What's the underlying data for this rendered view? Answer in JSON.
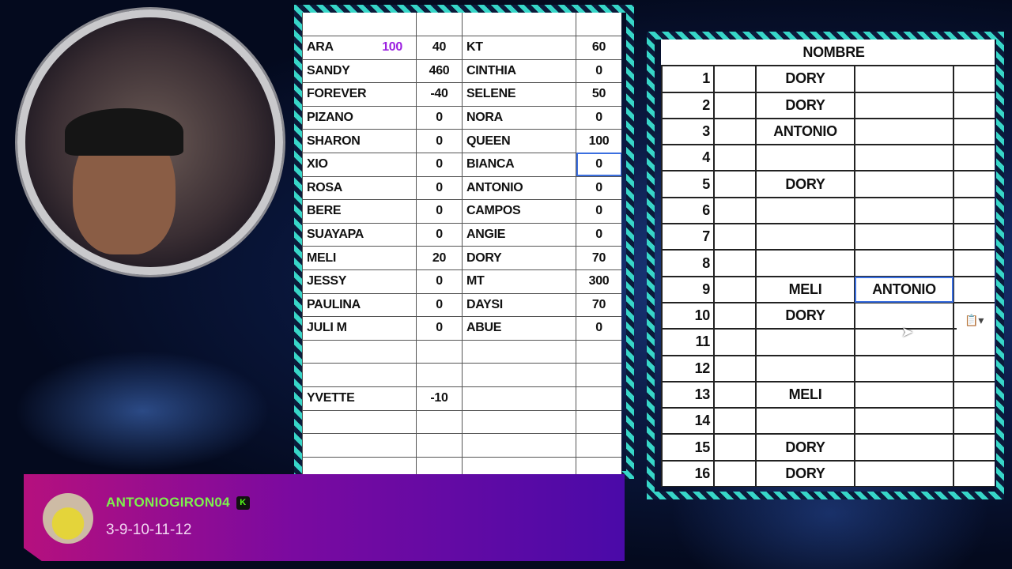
{
  "left_sheet": {
    "rows": [
      {
        "name": "ARA",
        "extra": "100",
        "value": "40",
        "name2": "KT",
        "value2": "60"
      },
      {
        "name": "SANDY",
        "value": "460",
        "name2": "CINTHIA",
        "value2": "0"
      },
      {
        "name": "FOREVER",
        "value": "-40",
        "name2": "SELENE",
        "value2": "50"
      },
      {
        "name": "PIZANO",
        "value": "0",
        "name2": "NORA",
        "value2": "0"
      },
      {
        "name": "SHARON",
        "value": "0",
        "name2": "QUEEN",
        "value2": "100"
      },
      {
        "name": "XIO",
        "value": "0",
        "name2": "BIANCA",
        "value2": "0"
      },
      {
        "name": "ROSA",
        "value": "0",
        "name2": "ANTONIO",
        "value2": "0"
      },
      {
        "name": "BERE",
        "value": "0",
        "name2": "CAMPOS",
        "value2": "0"
      },
      {
        "name": "SUAYAPA",
        "value": "0",
        "name2": "ANGIE",
        "value2": "0"
      },
      {
        "name": "MELI",
        "value": "20",
        "name2": "DORY",
        "value2": "70"
      },
      {
        "name": "JESSY",
        "value": "0",
        "name2": "MT",
        "value2": "300"
      },
      {
        "name": "PAULINA",
        "value": "0",
        "name2": "DAYSI",
        "value2": "70"
      },
      {
        "name": "JULI M",
        "value": "0",
        "name2": "ABUE",
        "value2": "0"
      },
      {},
      {},
      {
        "name": "YVETTE",
        "value": "-10"
      },
      {},
      {},
      {}
    ],
    "extra_color": "#9b1fe0"
  },
  "right_sheet": {
    "header": "NOMBRE",
    "rows": [
      {
        "n": "1",
        "name": "DORY"
      },
      {
        "n": "2",
        "name": "DORY"
      },
      {
        "n": "3",
        "name": "ANTONIO"
      },
      {
        "n": "4"
      },
      {
        "n": "5",
        "name": "DORY"
      },
      {
        "n": "6"
      },
      {
        "n": "7"
      },
      {
        "n": "8"
      },
      {
        "n": "9",
        "name": "MELI",
        "name2": "ANTONIO"
      },
      {
        "n": "10",
        "name": "DORY"
      },
      {
        "n": "11"
      },
      {
        "n": "12"
      },
      {
        "n": "13",
        "name": "MELI"
      },
      {
        "n": "14"
      },
      {
        "n": "15",
        "name": "DORY"
      },
      {
        "n": "16",
        "name": "DORY"
      }
    ]
  },
  "chat": {
    "username": "ANTONIOGIRON04",
    "badge": "K",
    "message": "3-9-10-11-12",
    "username_color": "#7ef04d"
  }
}
